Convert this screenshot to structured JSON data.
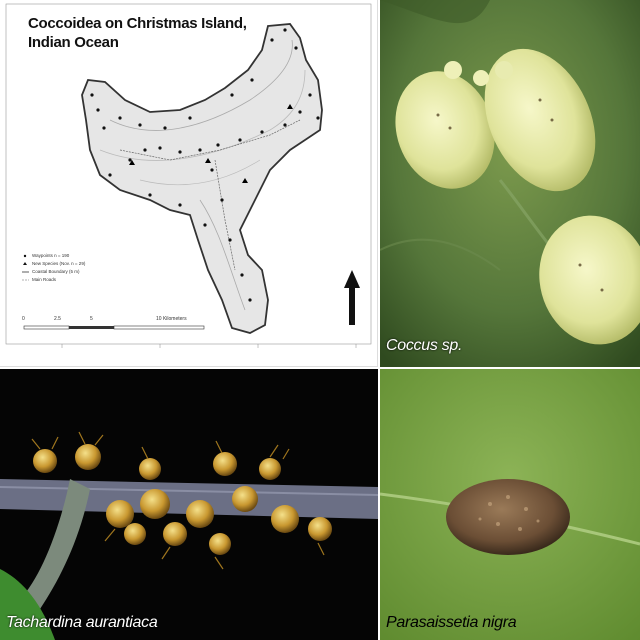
{
  "map": {
    "title_line1": "Coccoidea on Christmas Island,",
    "title_line2": "Indian Ocean",
    "legend": [
      "Waypoints  n = 190",
      "New Species (Nov. n = 29)",
      "Coastal Boundary (5 m)",
      "Main Roads"
    ],
    "scale_labels": [
      "0",
      "2.5",
      "5",
      "10 Kilometers"
    ]
  },
  "photos": {
    "coccus": {
      "caption": "Coccus sp."
    },
    "tachardina": {
      "caption": "Tachardina aurantiaca"
    },
    "parasaissetia": {
      "caption": "Parasaissetia nigra"
    }
  },
  "colors": {
    "leaf_green": "#4f6e33",
    "scale_insect_yellow": "#e6e9a8",
    "lac_orange": "#c99830",
    "leaf_light_green": "#6f9a3c",
    "brown_scale": "#6b4e35"
  }
}
